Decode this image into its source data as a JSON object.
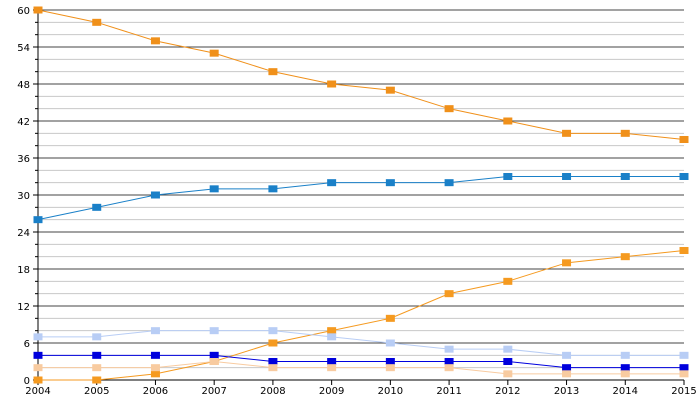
{
  "chart_data": {
    "type": "line",
    "title": "",
    "xlabel": "",
    "ylabel": "",
    "x": [
      "2004",
      "2005",
      "2006",
      "2007",
      "2008",
      "2009",
      "2010",
      "2011",
      "2012",
      "2013",
      "2014",
      "2015"
    ],
    "ylim": [
      0,
      60
    ],
    "yticks": [
      "0",
      "6",
      "12",
      "18",
      "24",
      "30",
      "36",
      "42",
      "48",
      "54",
      "60"
    ],
    "grid": true,
    "legend": "none",
    "series": [
      {
        "name": "series-orange-falling",
        "color": "#f0901a",
        "values": [
          60,
          58,
          55,
          53,
          50,
          48,
          47,
          44,
          42,
          40,
          40,
          39
        ]
      },
      {
        "name": "series-blue",
        "color": "#1a80c8",
        "values": [
          26,
          28,
          30,
          31,
          31,
          32,
          32,
          32,
          33,
          33,
          33,
          33
        ]
      },
      {
        "name": "series-orange-rising",
        "color": "#f59a20",
        "values": [
          0,
          0,
          1,
          3,
          6,
          8,
          10,
          14,
          16,
          19,
          20,
          21
        ]
      },
      {
        "name": "series-light-blue",
        "color": "#b8cdf5",
        "values": [
          7,
          7,
          8,
          8,
          8,
          7,
          6,
          5,
          5,
          4,
          4,
          4
        ]
      },
      {
        "name": "series-dark-blue",
        "color": "#0000dd",
        "values": [
          4,
          4,
          4,
          4,
          3,
          3,
          3,
          3,
          3,
          2,
          2,
          2
        ]
      },
      {
        "name": "series-peach",
        "color": "#f8cba0",
        "values": [
          2,
          2,
          2,
          3,
          2,
          2,
          2,
          2,
          1,
          1,
          1,
          1
        ]
      }
    ]
  }
}
